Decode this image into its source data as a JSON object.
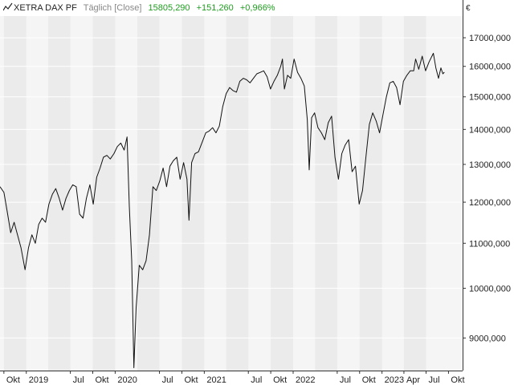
{
  "header": {
    "symbol": "XETRA DAX PF",
    "period": "Täglich [Close]",
    "last": "15805,290",
    "change": "+151,260",
    "change_pct": "+0,966%",
    "currency": "€",
    "icon": "line-chart-icon"
  },
  "colors": {
    "line": "#111111",
    "positive": "#1e9e1e",
    "band_dark": "#ebebeb",
    "band_light": "#f5f5f5",
    "grid": "#ffffff"
  },
  "chart_data": {
    "type": "line",
    "scale": "log",
    "ylim": [
      8400,
      17800
    ],
    "xlim": [
      "2018-09-15",
      "2023-11-28"
    ],
    "y_ticks": [
      {
        "v": 9000,
        "label": "9000,000"
      },
      {
        "v": 10000,
        "label": "10000,000"
      },
      {
        "v": 11000,
        "label": "11000,000"
      },
      {
        "v": 12000,
        "label": "12000,000"
      },
      {
        "v": 13000,
        "label": "13000,000"
      },
      {
        "v": 14000,
        "label": "14000,000"
      },
      {
        "v": 15000,
        "label": "15000,000"
      },
      {
        "v": 16000,
        "label": "16000,000"
      },
      {
        "v": 17000,
        "label": "17000,000"
      }
    ],
    "x_ticks": [
      {
        "d": "2018-10-01",
        "label": "Okt"
      },
      {
        "d": "2019-01-01",
        "label": "2019"
      },
      {
        "d": "2019-07-01",
        "label": "Jul"
      },
      {
        "d": "2019-10-01",
        "label": "Okt"
      },
      {
        "d": "2020-01-01",
        "label": "2020"
      },
      {
        "d": "2020-07-01",
        "label": "Jul"
      },
      {
        "d": "2020-10-01",
        "label": "Okt"
      },
      {
        "d": "2021-01-01",
        "label": "2021"
      },
      {
        "d": "2021-07-01",
        "label": "Jul"
      },
      {
        "d": "2021-10-01",
        "label": "Okt"
      },
      {
        "d": "2022-01-01",
        "label": "2022"
      },
      {
        "d": "2022-07-01",
        "label": "Jul"
      },
      {
        "d": "2022-10-01",
        "label": "Okt"
      },
      {
        "d": "2023-01-01",
        "label": "2023"
      },
      {
        "d": "2023-04-01",
        "label": "Apr"
      },
      {
        "d": "2023-07-01",
        "label": "Jul"
      },
      {
        "d": "2023-10-01",
        "label": "Okt"
      }
    ],
    "series": [
      {
        "points": [
          [
            "2018-09-15",
            12400
          ],
          [
            "2018-10-01",
            12250
          ],
          [
            "2018-10-15",
            11750
          ],
          [
            "2018-10-29",
            11250
          ],
          [
            "2018-11-12",
            11500
          ],
          [
            "2018-11-26",
            11200
          ],
          [
            "2018-12-10",
            10900
          ],
          [
            "2018-12-27",
            10400
          ],
          [
            "2019-01-10",
            10900
          ],
          [
            "2019-01-24",
            11200
          ],
          [
            "2019-02-07",
            11000
          ],
          [
            "2019-02-21",
            11450
          ],
          [
            "2019-03-07",
            11600
          ],
          [
            "2019-03-21",
            11500
          ],
          [
            "2019-04-04",
            11950
          ],
          [
            "2019-04-18",
            12200
          ],
          [
            "2019-05-02",
            12350
          ],
          [
            "2019-05-16",
            12100
          ],
          [
            "2019-05-30",
            11800
          ],
          [
            "2019-06-13",
            12100
          ],
          [
            "2019-06-27",
            12300
          ],
          [
            "2019-07-11",
            12450
          ],
          [
            "2019-07-25",
            12400
          ],
          [
            "2019-08-08",
            11700
          ],
          [
            "2019-08-22",
            11600
          ],
          [
            "2019-09-05",
            12100
          ],
          [
            "2019-09-19",
            12450
          ],
          [
            "2019-10-03",
            11950
          ],
          [
            "2019-10-17",
            12650
          ],
          [
            "2019-10-31",
            12900
          ],
          [
            "2019-11-14",
            13200
          ],
          [
            "2019-11-28",
            13250
          ],
          [
            "2019-12-12",
            13150
          ],
          [
            "2019-12-27",
            13300
          ],
          [
            "2020-01-10",
            13500
          ],
          [
            "2020-01-24",
            13600
          ],
          [
            "2020-02-07",
            13400
          ],
          [
            "2020-02-19",
            13780
          ],
          [
            "2020-02-28",
            11900
          ],
          [
            "2020-03-09",
            10600
          ],
          [
            "2020-03-18",
            8450
          ],
          [
            "2020-03-27",
            9600
          ],
          [
            "2020-04-09",
            10500
          ],
          [
            "2020-04-23",
            10400
          ],
          [
            "2020-05-07",
            10600
          ],
          [
            "2020-05-21",
            11200
          ],
          [
            "2020-06-04",
            12400
          ],
          [
            "2020-06-18",
            12300
          ],
          [
            "2020-07-02",
            12550
          ],
          [
            "2020-07-16",
            12900
          ],
          [
            "2020-07-30",
            12400
          ],
          [
            "2020-08-13",
            12950
          ],
          [
            "2020-08-27",
            13100
          ],
          [
            "2020-09-10",
            13200
          ],
          [
            "2020-09-24",
            12600
          ],
          [
            "2020-10-08",
            13050
          ],
          [
            "2020-10-22",
            12600
          ],
          [
            "2020-10-30",
            11550
          ],
          [
            "2020-11-10",
            13050
          ],
          [
            "2020-11-24",
            13300
          ],
          [
            "2020-12-08",
            13350
          ],
          [
            "2020-12-22",
            13600
          ],
          [
            "2021-01-07",
            13900
          ],
          [
            "2021-01-21",
            13950
          ],
          [
            "2021-02-04",
            14050
          ],
          [
            "2021-02-18",
            13900
          ],
          [
            "2021-03-04",
            14100
          ],
          [
            "2021-03-18",
            14700
          ],
          [
            "2021-04-01",
            15100
          ],
          [
            "2021-04-15",
            15300
          ],
          [
            "2021-04-29",
            15200
          ],
          [
            "2021-05-13",
            15150
          ],
          [
            "2021-05-27",
            15500
          ],
          [
            "2021-06-10",
            15600
          ],
          [
            "2021-06-24",
            15550
          ],
          [
            "2021-07-08",
            15450
          ],
          [
            "2021-07-22",
            15600
          ],
          [
            "2021-08-05",
            15750
          ],
          [
            "2021-08-19",
            15800
          ],
          [
            "2021-09-02",
            15850
          ],
          [
            "2021-09-16",
            15650
          ],
          [
            "2021-09-30",
            15250
          ],
          [
            "2021-10-14",
            15500
          ],
          [
            "2021-10-28",
            15700
          ],
          [
            "2021-11-11",
            16000
          ],
          [
            "2021-11-18",
            16250
          ],
          [
            "2021-11-26",
            15250
          ],
          [
            "2021-12-09",
            15700
          ],
          [
            "2021-12-22",
            15600
          ],
          [
            "2022-01-05",
            16250
          ],
          [
            "2022-01-19",
            15800
          ],
          [
            "2022-02-02",
            15600
          ],
          [
            "2022-02-16",
            15350
          ],
          [
            "2022-02-28",
            14300
          ],
          [
            "2022-03-08",
            12850
          ],
          [
            "2022-03-18",
            14350
          ],
          [
            "2022-03-30",
            14500
          ],
          [
            "2022-04-13",
            14050
          ],
          [
            "2022-04-27",
            13900
          ],
          [
            "2022-05-11",
            13700
          ],
          [
            "2022-05-25",
            14200
          ],
          [
            "2022-06-08",
            14400
          ],
          [
            "2022-06-22",
            13200
          ],
          [
            "2022-07-06",
            12600
          ],
          [
            "2022-07-20",
            13300
          ],
          [
            "2022-08-03",
            13550
          ],
          [
            "2022-08-17",
            13700
          ],
          [
            "2022-08-31",
            12800
          ],
          [
            "2022-09-14",
            12950
          ],
          [
            "2022-09-29",
            11950
          ],
          [
            "2022-10-13",
            12300
          ],
          [
            "2022-10-27",
            13200
          ],
          [
            "2022-11-10",
            14150
          ],
          [
            "2022-11-24",
            14500
          ],
          [
            "2022-12-08",
            14250
          ],
          [
            "2022-12-22",
            13900
          ],
          [
            "2023-01-05",
            14450
          ],
          [
            "2023-01-19",
            15000
          ],
          [
            "2023-02-02",
            15450
          ],
          [
            "2023-02-16",
            15500
          ],
          [
            "2023-03-02",
            15300
          ],
          [
            "2023-03-16",
            14750
          ],
          [
            "2023-03-30",
            15500
          ],
          [
            "2023-04-13",
            15700
          ],
          [
            "2023-04-27",
            15850
          ],
          [
            "2023-05-11",
            15850
          ],
          [
            "2023-05-19",
            16250
          ],
          [
            "2023-06-01",
            15900
          ],
          [
            "2023-06-15",
            16350
          ],
          [
            "2023-06-29",
            15850
          ],
          [
            "2023-07-13",
            16150
          ],
          [
            "2023-07-31",
            16450
          ],
          [
            "2023-08-10",
            15950
          ],
          [
            "2023-08-21",
            15600
          ],
          [
            "2023-08-31",
            15950
          ],
          [
            "2023-09-08",
            15750
          ],
          [
            "2023-09-14",
            15805
          ]
        ]
      }
    ]
  }
}
